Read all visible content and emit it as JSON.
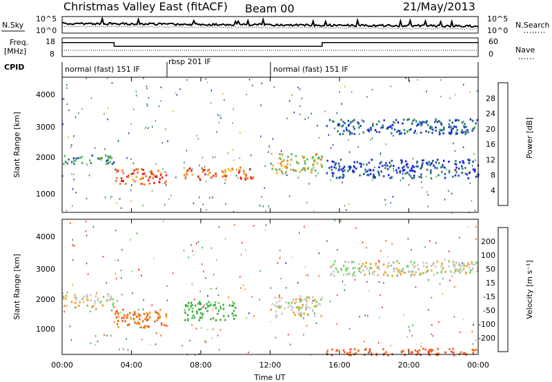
{
  "header": {
    "station": "Christmas Valley East (fitACF)",
    "beam": "Beam 00",
    "date": "21/May/2013"
  },
  "top_panels": {
    "nsky_label": "N.Sky",
    "nsearch_label": "N.Search",
    "noise_tick_top": "10^5",
    "noise_tick_bottom": "10^0",
    "freq_label_line1": "Freq.",
    "freq_label_line2": "[MHz]",
    "freq_tick_top": "18",
    "freq_tick_bottom": "8",
    "nave_label": "Nave",
    "nave_tick_top": "60",
    "nave_tick_bottom": "0",
    "cpid_label": "CPID",
    "cpid_segments": [
      {
        "label": "normal (fast) 151 IF",
        "start_hour": 0,
        "end_hour": 6
      },
      {
        "label": "rbsp 201 IF",
        "start_hour": 6,
        "end_hour": 12
      },
      {
        "label": "normal (fast) 151 IF",
        "start_hour": 12,
        "end_hour": 24
      }
    ]
  },
  "x_axis": {
    "title": "Time UT",
    "ticks": [
      "00:00",
      "04:00",
      "08:00",
      "12:00",
      "16:00",
      "20:00",
      "00:00"
    ]
  },
  "power_panel": {
    "ylabel": "Slant Range [km]",
    "yticks": [
      "1000",
      "2000",
      "3000",
      "4000"
    ],
    "colorbar_label": "Power [dB]",
    "colorbar_ticks": [
      "4",
      "8",
      "12",
      "16",
      "20",
      "24",
      "28"
    ],
    "colors": [
      "#1a1aff",
      "#1f4ca8",
      "#2f7f6f",
      "#58b858",
      "#f0b020",
      "#f07020",
      "#ee1b14"
    ]
  },
  "velocity_panel": {
    "ylabel": "Slant Range [km]",
    "yticks": [
      "1000",
      "2000",
      "3000",
      "4000"
    ],
    "colorbar_label": "Velocity [m s⁻¹]",
    "colorbar_ticks": [
      "200",
      "100",
      "50",
      "15",
      "-15",
      "-50",
      "-100",
      "-200"
    ],
    "colors": [
      "#1a1aff",
      "#2b7a5c",
      "#3cb043",
      "#6dd45a",
      "#c8c8c8",
      "#f0a020",
      "#f06010",
      "#ff2a1a",
      "#e00000"
    ]
  },
  "chart_data": [
    {
      "type": "heatmap",
      "title": "Power",
      "x_range_hours": [
        0,
        24
      ],
      "y_range_km": [
        180,
        4500
      ],
      "xlabel": "Time UT",
      "ylabel": "Slant Range [km]",
      "colorbar": {
        "label": "Power [dB]",
        "range": [
          0,
          30
        ]
      },
      "echo_bands": [
        {
          "t_start": 0,
          "t_end": 3.0,
          "range_start_km": 1750,
          "range_end_km": 2050,
          "power_db": 12
        },
        {
          "t_start": 3.0,
          "t_end": 6.0,
          "range_start_km": 1100,
          "range_end_km": 1600,
          "power_db": 26
        },
        {
          "t_start": 7.0,
          "t_end": 11.0,
          "range_start_km": 1250,
          "range_end_km": 1650,
          "power_db": 24
        },
        {
          "t_start": 12.0,
          "t_end": 15.0,
          "range_start_km": 1450,
          "range_end_km": 2100,
          "power_db": 18
        },
        {
          "t_start": 15.2,
          "t_end": 24.0,
          "range_start_km": 2700,
          "range_end_km": 3200,
          "power_db": 8
        },
        {
          "t_start": 15.2,
          "t_end": 24.0,
          "range_start_km": 1300,
          "range_end_km": 1900,
          "power_db": 6
        }
      ]
    },
    {
      "type": "heatmap",
      "title": "Velocity",
      "x_range_hours": [
        0,
        24
      ],
      "y_range_km": [
        180,
        4500
      ],
      "xlabel": "Time UT",
      "ylabel": "Slant Range [km]",
      "colorbar": {
        "label": "Velocity [m s^-1]",
        "range": [
          -200,
          200
        ]
      },
      "echo_bands": [
        {
          "t_start": 0,
          "t_end": 3.0,
          "range_start_km": 1700,
          "range_end_km": 2150,
          "velocity": 0
        },
        {
          "t_start": 3.0,
          "t_end": 6.0,
          "range_start_km": 1050,
          "range_end_km": 1650,
          "velocity": -40
        },
        {
          "t_start": 7.0,
          "t_end": 10.0,
          "range_start_km": 1300,
          "range_end_km": 1900,
          "velocity": 45
        },
        {
          "t_start": 12.0,
          "t_end": 15.0,
          "range_start_km": 1400,
          "range_end_km": 2100,
          "velocity": 0
        },
        {
          "t_start": 15.2,
          "t_end": 24.0,
          "range_start_km": 2700,
          "range_end_km": 3200,
          "velocity": 0
        },
        {
          "t_start": 15.2,
          "t_end": 24.0,
          "range_start_km": 180,
          "range_end_km": 400,
          "velocity": -60
        }
      ]
    }
  ]
}
